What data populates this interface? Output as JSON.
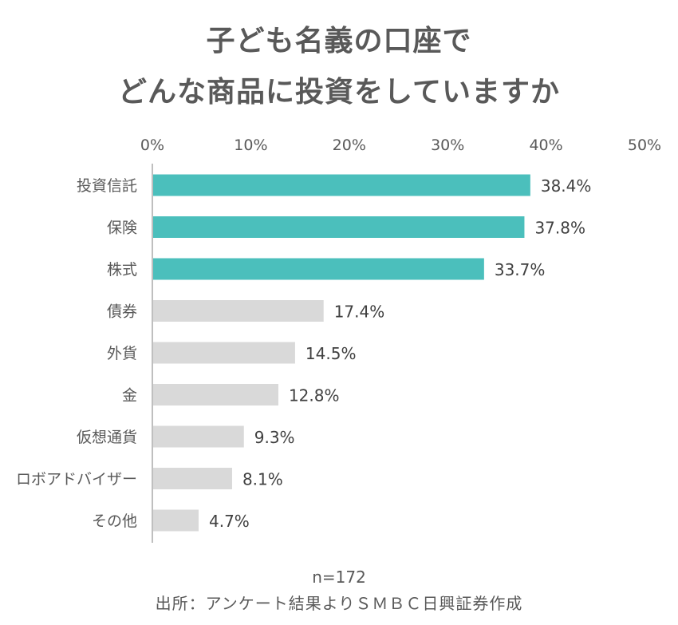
{
  "title": {
    "line1": "子ども名義の口座で",
    "line2": "どんな商品に投資をしていますか"
  },
  "colors": {
    "highlight": "#4bbfbc",
    "default": "#d9d9d9",
    "text": "#595959",
    "value_text": "#404040",
    "axis": "#bfbfbf"
  },
  "chart_data": {
    "type": "bar",
    "orientation": "horizontal",
    "categories": [
      "投資信託",
      "保険",
      "株式",
      "債券",
      "外貨",
      "金",
      "仮想通貨",
      "ロボアドバイザー",
      "その他"
    ],
    "values": [
      38.4,
      37.8,
      33.7,
      17.4,
      14.5,
      12.8,
      9.3,
      8.1,
      4.7
    ],
    "value_labels": [
      "38.4%",
      "37.8%",
      "33.7%",
      "17.4%",
      "14.5%",
      "12.8%",
      "9.3%",
      "8.1%",
      "4.7%"
    ],
    "highlighted": [
      true,
      true,
      true,
      false,
      false,
      false,
      false,
      false,
      false
    ],
    "x_ticks": [
      0,
      10,
      20,
      30,
      40,
      50
    ],
    "x_tick_labels": [
      "0%",
      "10%",
      "20%",
      "30%",
      "40%",
      "50%"
    ],
    "xlim": [
      0,
      50
    ],
    "xaxis_position": "top",
    "grid": false,
    "title": "子ども名義の口座でどんな商品に投資をしていますか",
    "xlabel": "",
    "ylabel": ""
  },
  "footer": {
    "sample_size": "n=172",
    "source": "出所：アンケート結果よりＳＭＢＣ日興証券作成"
  }
}
